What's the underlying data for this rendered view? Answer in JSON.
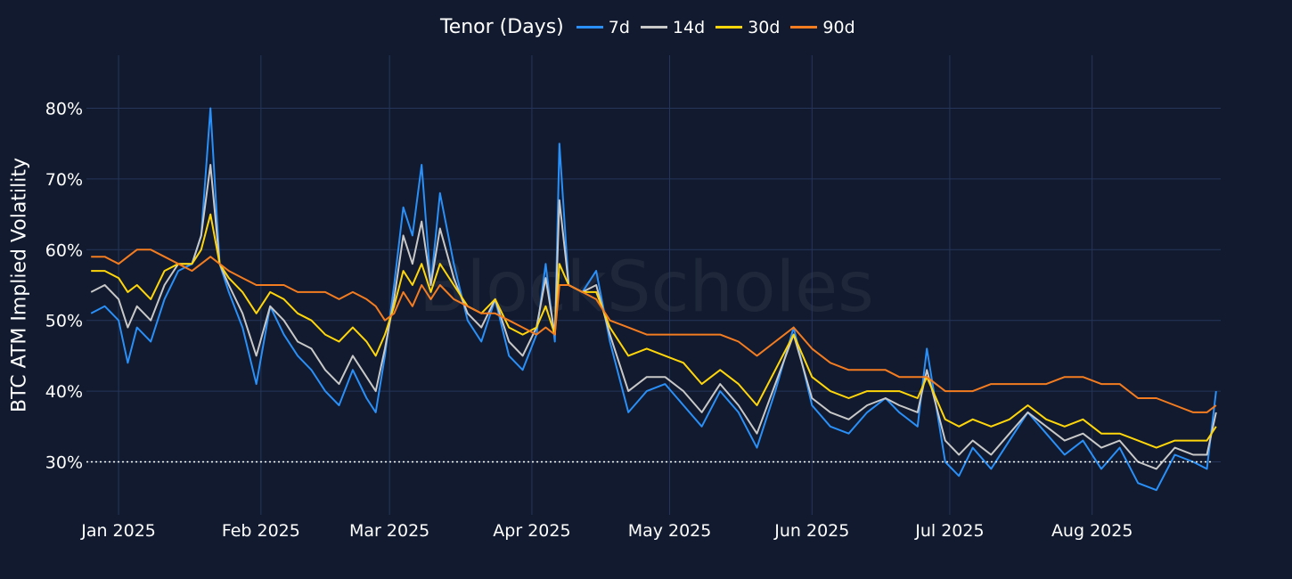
{
  "chart_data": {
    "type": "line",
    "title": "",
    "ylabel": "BTC ATM Implied Volatility",
    "xlabel": "",
    "legend_title": "Tenor (Days)",
    "legend_position": "top-center",
    "watermark": "BlockScholes",
    "grid": true,
    "x_range": [
      "2024-12-25",
      "2025-08-29"
    ],
    "y_range": [
      0.225,
      0.875
    ],
    "y_ticks": [
      0.3,
      0.4,
      0.5,
      0.6,
      0.7,
      0.8
    ],
    "y_tick_labels": [
      "30%",
      "40%",
      "50%",
      "60%",
      "70%",
      "80%"
    ],
    "x_ticks": [
      "2025-01-01",
      "2025-02-01",
      "2025-03-01",
      "2025-04-01",
      "2025-05-01",
      "2025-06-01",
      "2025-07-01",
      "2025-08-01"
    ],
    "x_tick_labels": [
      "Jan 2025",
      "Feb 2025",
      "Mar 2025",
      "Apr 2025",
      "May 2025",
      "Jun 2025",
      "Jul 2025",
      "Aug 2025"
    ],
    "reference_line": {
      "y": 0.3,
      "style": "dotted",
      "color": "#ffffff"
    },
    "series": [
      {
        "name": "7d",
        "color": "#2a8ff7",
        "x": [
          "2024-12-26",
          "2024-12-29",
          "2025-01-01",
          "2025-01-03",
          "2025-01-05",
          "2025-01-08",
          "2025-01-11",
          "2025-01-14",
          "2025-01-17",
          "2025-01-19",
          "2025-01-21",
          "2025-01-23",
          "2025-01-25",
          "2025-01-28",
          "2025-01-31",
          "2025-02-03",
          "2025-02-06",
          "2025-02-09",
          "2025-02-12",
          "2025-02-15",
          "2025-02-18",
          "2025-02-21",
          "2025-02-24",
          "2025-02-26",
          "2025-02-28",
          "2025-03-02",
          "2025-03-04",
          "2025-03-06",
          "2025-03-08",
          "2025-03-10",
          "2025-03-12",
          "2025-03-15",
          "2025-03-18",
          "2025-03-21",
          "2025-03-24",
          "2025-03-27",
          "2025-03-30",
          "2025-04-02",
          "2025-04-04",
          "2025-04-06",
          "2025-04-07",
          "2025-04-09",
          "2025-04-12",
          "2025-04-15",
          "2025-04-18",
          "2025-04-22",
          "2025-04-26",
          "2025-04-30",
          "2025-05-04",
          "2025-05-08",
          "2025-05-12",
          "2025-05-16",
          "2025-05-20",
          "2025-05-24",
          "2025-05-28",
          "2025-06-01",
          "2025-06-05",
          "2025-06-09",
          "2025-06-13",
          "2025-06-17",
          "2025-06-20",
          "2025-06-24",
          "2025-06-26",
          "2025-06-30",
          "2025-07-03",
          "2025-07-06",
          "2025-07-10",
          "2025-07-14",
          "2025-07-18",
          "2025-07-22",
          "2025-07-26",
          "2025-07-30",
          "2025-08-03",
          "2025-08-07",
          "2025-08-11",
          "2025-08-15",
          "2025-08-19",
          "2025-08-23",
          "2025-08-26",
          "2025-08-28"
        ],
        "y": [
          0.51,
          0.52,
          0.5,
          0.44,
          0.49,
          0.47,
          0.53,
          0.57,
          0.58,
          0.62,
          0.8,
          0.58,
          0.54,
          0.49,
          0.41,
          0.52,
          0.48,
          0.45,
          0.43,
          0.4,
          0.38,
          0.43,
          0.39,
          0.37,
          0.45,
          0.55,
          0.66,
          0.62,
          0.72,
          0.55,
          0.68,
          0.58,
          0.5,
          0.47,
          0.53,
          0.45,
          0.43,
          0.48,
          0.58,
          0.47,
          0.75,
          0.55,
          0.54,
          0.57,
          0.47,
          0.37,
          0.4,
          0.41,
          0.38,
          0.35,
          0.4,
          0.37,
          0.32,
          0.4,
          0.49,
          0.38,
          0.35,
          0.34,
          0.37,
          0.39,
          0.37,
          0.35,
          0.46,
          0.3,
          0.28,
          0.32,
          0.29,
          0.33,
          0.37,
          0.34,
          0.31,
          0.33,
          0.29,
          0.32,
          0.27,
          0.26,
          0.31,
          0.3,
          0.29,
          0.4
        ]
      },
      {
        "name": "14d",
        "color": "#c8c8c8",
        "x": [
          "2024-12-26",
          "2024-12-29",
          "2025-01-01",
          "2025-01-03",
          "2025-01-05",
          "2025-01-08",
          "2025-01-11",
          "2025-01-14",
          "2025-01-17",
          "2025-01-19",
          "2025-01-21",
          "2025-01-23",
          "2025-01-25",
          "2025-01-28",
          "2025-01-31",
          "2025-02-03",
          "2025-02-06",
          "2025-02-09",
          "2025-02-12",
          "2025-02-15",
          "2025-02-18",
          "2025-02-21",
          "2025-02-24",
          "2025-02-26",
          "2025-02-28",
          "2025-03-02",
          "2025-03-04",
          "2025-03-06",
          "2025-03-08",
          "2025-03-10",
          "2025-03-12",
          "2025-03-15",
          "2025-03-18",
          "2025-03-21",
          "2025-03-24",
          "2025-03-27",
          "2025-03-30",
          "2025-04-02",
          "2025-04-04",
          "2025-04-06",
          "2025-04-07",
          "2025-04-09",
          "2025-04-12",
          "2025-04-15",
          "2025-04-18",
          "2025-04-22",
          "2025-04-26",
          "2025-04-30",
          "2025-05-04",
          "2025-05-08",
          "2025-05-12",
          "2025-05-16",
          "2025-05-20",
          "2025-05-24",
          "2025-05-28",
          "2025-06-01",
          "2025-06-05",
          "2025-06-09",
          "2025-06-13",
          "2025-06-17",
          "2025-06-20",
          "2025-06-24",
          "2025-06-26",
          "2025-06-30",
          "2025-07-03",
          "2025-07-06",
          "2025-07-10",
          "2025-07-14",
          "2025-07-18",
          "2025-07-22",
          "2025-07-26",
          "2025-07-30",
          "2025-08-03",
          "2025-08-07",
          "2025-08-11",
          "2025-08-15",
          "2025-08-19",
          "2025-08-23",
          "2025-08-26",
          "2025-08-28"
        ],
        "y": [
          0.54,
          0.55,
          0.53,
          0.49,
          0.52,
          0.5,
          0.55,
          0.58,
          0.58,
          0.62,
          0.72,
          0.58,
          0.55,
          0.51,
          0.45,
          0.52,
          0.5,
          0.47,
          0.46,
          0.43,
          0.41,
          0.45,
          0.42,
          0.4,
          0.46,
          0.53,
          0.62,
          0.58,
          0.64,
          0.55,
          0.63,
          0.56,
          0.51,
          0.49,
          0.53,
          0.47,
          0.45,
          0.49,
          0.56,
          0.48,
          0.67,
          0.55,
          0.54,
          0.55,
          0.48,
          0.4,
          0.42,
          0.42,
          0.4,
          0.37,
          0.41,
          0.38,
          0.34,
          0.41,
          0.48,
          0.39,
          0.37,
          0.36,
          0.38,
          0.39,
          0.38,
          0.37,
          0.43,
          0.33,
          0.31,
          0.33,
          0.31,
          0.34,
          0.37,
          0.35,
          0.33,
          0.34,
          0.32,
          0.33,
          0.3,
          0.29,
          0.32,
          0.31,
          0.31,
          0.37
        ]
      },
      {
        "name": "30d",
        "color": "#ffd60a",
        "x": [
          "2024-12-26",
          "2024-12-29",
          "2025-01-01",
          "2025-01-03",
          "2025-01-05",
          "2025-01-08",
          "2025-01-11",
          "2025-01-14",
          "2025-01-17",
          "2025-01-19",
          "2025-01-21",
          "2025-01-23",
          "2025-01-25",
          "2025-01-28",
          "2025-01-31",
          "2025-02-03",
          "2025-02-06",
          "2025-02-09",
          "2025-02-12",
          "2025-02-15",
          "2025-02-18",
          "2025-02-21",
          "2025-02-24",
          "2025-02-26",
          "2025-02-28",
          "2025-03-02",
          "2025-03-04",
          "2025-03-06",
          "2025-03-08",
          "2025-03-10",
          "2025-03-12",
          "2025-03-15",
          "2025-03-18",
          "2025-03-21",
          "2025-03-24",
          "2025-03-27",
          "2025-03-30",
          "2025-04-02",
          "2025-04-04",
          "2025-04-06",
          "2025-04-07",
          "2025-04-09",
          "2025-04-12",
          "2025-04-15",
          "2025-04-18",
          "2025-04-22",
          "2025-04-26",
          "2025-04-30",
          "2025-05-04",
          "2025-05-08",
          "2025-05-12",
          "2025-05-16",
          "2025-05-20",
          "2025-05-24",
          "2025-05-28",
          "2025-06-01",
          "2025-06-05",
          "2025-06-09",
          "2025-06-13",
          "2025-06-17",
          "2025-06-20",
          "2025-06-24",
          "2025-06-26",
          "2025-06-30",
          "2025-07-03",
          "2025-07-06",
          "2025-07-10",
          "2025-07-14",
          "2025-07-18",
          "2025-07-22",
          "2025-07-26",
          "2025-07-30",
          "2025-08-03",
          "2025-08-07",
          "2025-08-11",
          "2025-08-15",
          "2025-08-19",
          "2025-08-23",
          "2025-08-26",
          "2025-08-28"
        ],
        "y": [
          0.57,
          0.57,
          0.56,
          0.54,
          0.55,
          0.53,
          0.57,
          0.58,
          0.58,
          0.6,
          0.65,
          0.58,
          0.56,
          0.54,
          0.51,
          0.54,
          0.53,
          0.51,
          0.5,
          0.48,
          0.47,
          0.49,
          0.47,
          0.45,
          0.48,
          0.52,
          0.57,
          0.55,
          0.58,
          0.54,
          0.58,
          0.55,
          0.52,
          0.51,
          0.53,
          0.49,
          0.48,
          0.49,
          0.52,
          0.48,
          0.58,
          0.55,
          0.54,
          0.54,
          0.49,
          0.45,
          0.46,
          0.45,
          0.44,
          0.41,
          0.43,
          0.41,
          0.38,
          0.43,
          0.48,
          0.42,
          0.4,
          0.39,
          0.4,
          0.4,
          0.4,
          0.39,
          0.42,
          0.36,
          0.35,
          0.36,
          0.35,
          0.36,
          0.38,
          0.36,
          0.35,
          0.36,
          0.34,
          0.34,
          0.33,
          0.32,
          0.33,
          0.33,
          0.33,
          0.35
        ]
      },
      {
        "name": "90d",
        "color": "#f47c20",
        "x": [
          "2024-12-26",
          "2024-12-29",
          "2025-01-01",
          "2025-01-03",
          "2025-01-05",
          "2025-01-08",
          "2025-01-11",
          "2025-01-14",
          "2025-01-17",
          "2025-01-19",
          "2025-01-21",
          "2025-01-23",
          "2025-01-25",
          "2025-01-28",
          "2025-01-31",
          "2025-02-03",
          "2025-02-06",
          "2025-02-09",
          "2025-02-12",
          "2025-02-15",
          "2025-02-18",
          "2025-02-21",
          "2025-02-24",
          "2025-02-26",
          "2025-02-28",
          "2025-03-02",
          "2025-03-04",
          "2025-03-06",
          "2025-03-08",
          "2025-03-10",
          "2025-03-12",
          "2025-03-15",
          "2025-03-18",
          "2025-03-21",
          "2025-03-24",
          "2025-03-27",
          "2025-03-30",
          "2025-04-02",
          "2025-04-04",
          "2025-04-06",
          "2025-04-07",
          "2025-04-09",
          "2025-04-12",
          "2025-04-15",
          "2025-04-18",
          "2025-04-22",
          "2025-04-26",
          "2025-04-30",
          "2025-05-04",
          "2025-05-08",
          "2025-05-12",
          "2025-05-16",
          "2025-05-20",
          "2025-05-24",
          "2025-05-28",
          "2025-06-01",
          "2025-06-05",
          "2025-06-09",
          "2025-06-13",
          "2025-06-17",
          "2025-06-20",
          "2025-06-24",
          "2025-06-26",
          "2025-06-30",
          "2025-07-03",
          "2025-07-06",
          "2025-07-10",
          "2025-07-14",
          "2025-07-18",
          "2025-07-22",
          "2025-07-26",
          "2025-07-30",
          "2025-08-03",
          "2025-08-07",
          "2025-08-11",
          "2025-08-15",
          "2025-08-19",
          "2025-08-23",
          "2025-08-26",
          "2025-08-28"
        ],
        "y": [
          0.59,
          0.59,
          0.58,
          0.59,
          0.6,
          0.6,
          0.59,
          0.58,
          0.57,
          0.58,
          0.59,
          0.58,
          0.57,
          0.56,
          0.55,
          0.55,
          0.55,
          0.54,
          0.54,
          0.54,
          0.53,
          0.54,
          0.53,
          0.52,
          0.5,
          0.51,
          0.54,
          0.52,
          0.55,
          0.53,
          0.55,
          0.53,
          0.52,
          0.51,
          0.51,
          0.5,
          0.49,
          0.48,
          0.49,
          0.48,
          0.55,
          0.55,
          0.54,
          0.53,
          0.5,
          0.49,
          0.48,
          0.48,
          0.48,
          0.48,
          0.48,
          0.47,
          0.45,
          0.47,
          0.49,
          0.46,
          0.44,
          0.43,
          0.43,
          0.43,
          0.42,
          0.42,
          0.42,
          0.4,
          0.4,
          0.4,
          0.41,
          0.41,
          0.41,
          0.41,
          0.42,
          0.42,
          0.41,
          0.41,
          0.39,
          0.39,
          0.38,
          0.37,
          0.37,
          0.38
        ]
      }
    ]
  }
}
